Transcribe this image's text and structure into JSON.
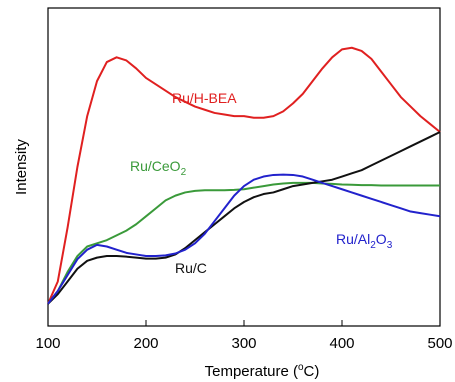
{
  "chart_data": {
    "type": "line",
    "xlabel": "Temperature (",
    "xlabel_sup": "o",
    "xlabel_tail": "C)",
    "ylabel": "Intensity",
    "xlim": [
      100,
      500
    ],
    "ylim": [
      0,
      1
    ],
    "x_ticks": [
      "100",
      "200",
      "300",
      "400",
      "500"
    ],
    "y_ticks_labeled": false,
    "grid": false,
    "legend": "inline labels",
    "series": [
      {
        "name": "Ru/H-BEA",
        "label_parts": [
          "Ru/H-BEA"
        ],
        "color": "#e02020",
        "x": [
          100,
          110,
          120,
          130,
          140,
          150,
          160,
          170,
          180,
          190,
          200,
          210,
          220,
          230,
          240,
          250,
          260,
          270,
          280,
          290,
          300,
          310,
          320,
          330,
          340,
          350,
          360,
          370,
          380,
          390,
          400,
          410,
          420,
          430,
          440,
          450,
          460,
          470,
          480,
          490,
          500
        ],
        "y": [
          0.07,
          0.14,
          0.31,
          0.5,
          0.66,
          0.77,
          0.83,
          0.845,
          0.835,
          0.81,
          0.78,
          0.76,
          0.74,
          0.72,
          0.705,
          0.69,
          0.68,
          0.67,
          0.665,
          0.66,
          0.66,
          0.655,
          0.655,
          0.66,
          0.675,
          0.7,
          0.73,
          0.77,
          0.81,
          0.845,
          0.87,
          0.875,
          0.865,
          0.84,
          0.8,
          0.76,
          0.72,
          0.69,
          0.66,
          0.635,
          0.61
        ]
      },
      {
        "name": "Ru/CeO2",
        "label_parts": [
          "Ru/CeO",
          "2"
        ],
        "color": "#3a9a3a",
        "x": [
          100,
          110,
          120,
          130,
          140,
          150,
          160,
          170,
          180,
          190,
          200,
          210,
          220,
          230,
          240,
          250,
          260,
          270,
          280,
          290,
          300,
          310,
          320,
          330,
          340,
          350,
          360,
          370,
          380,
          390,
          400,
          410,
          420,
          430,
          440,
          450,
          460,
          470,
          480,
          490,
          500
        ],
        "y": [
          0.07,
          0.11,
          0.17,
          0.22,
          0.25,
          0.26,
          0.27,
          0.285,
          0.3,
          0.32,
          0.345,
          0.37,
          0.395,
          0.41,
          0.42,
          0.425,
          0.427,
          0.427,
          0.427,
          0.428,
          0.43,
          0.435,
          0.44,
          0.445,
          0.448,
          0.45,
          0.45,
          0.45,
          0.448,
          0.447,
          0.445,
          0.444,
          0.443,
          0.443,
          0.442,
          0.442,
          0.442,
          0.442,
          0.442,
          0.442,
          0.442
        ]
      },
      {
        "name": "Ru/C",
        "label_parts": [
          "Ru/C"
        ],
        "color": "#111111",
        "x": [
          100,
          110,
          120,
          130,
          140,
          150,
          160,
          170,
          180,
          190,
          200,
          210,
          220,
          230,
          240,
          250,
          260,
          270,
          280,
          290,
          300,
          310,
          320,
          330,
          340,
          350,
          360,
          370,
          380,
          390,
          400,
          410,
          420,
          430,
          440,
          450,
          460,
          470,
          480,
          490,
          500
        ],
        "y": [
          0.07,
          0.1,
          0.14,
          0.18,
          0.205,
          0.215,
          0.22,
          0.22,
          0.218,
          0.215,
          0.212,
          0.212,
          0.215,
          0.225,
          0.245,
          0.27,
          0.295,
          0.32,
          0.345,
          0.37,
          0.39,
          0.405,
          0.415,
          0.42,
          0.43,
          0.44,
          0.445,
          0.45,
          0.455,
          0.46,
          0.47,
          0.48,
          0.49,
          0.505,
          0.52,
          0.535,
          0.55,
          0.565,
          0.58,
          0.595,
          0.61
        ]
      },
      {
        "name": "Ru/Al2O3",
        "label_parts": [
          "Ru/Al",
          "2",
          "O",
          "3"
        ],
        "color": "#2222cc",
        "x": [
          100,
          110,
          120,
          130,
          140,
          150,
          160,
          170,
          180,
          190,
          200,
          210,
          220,
          230,
          240,
          250,
          260,
          270,
          280,
          290,
          300,
          310,
          320,
          330,
          340,
          350,
          360,
          370,
          380,
          390,
          400,
          410,
          420,
          430,
          440,
          450,
          460,
          470,
          480,
          490,
          500
        ],
        "y": [
          0.07,
          0.11,
          0.16,
          0.21,
          0.24,
          0.255,
          0.25,
          0.24,
          0.23,
          0.225,
          0.22,
          0.22,
          0.222,
          0.228,
          0.24,
          0.26,
          0.29,
          0.33,
          0.37,
          0.41,
          0.44,
          0.46,
          0.47,
          0.475,
          0.476,
          0.475,
          0.47,
          0.46,
          0.45,
          0.44,
          0.43,
          0.42,
          0.41,
          0.4,
          0.39,
          0.38,
          0.37,
          0.36,
          0.355,
          0.35,
          0.345
        ]
      }
    ]
  }
}
